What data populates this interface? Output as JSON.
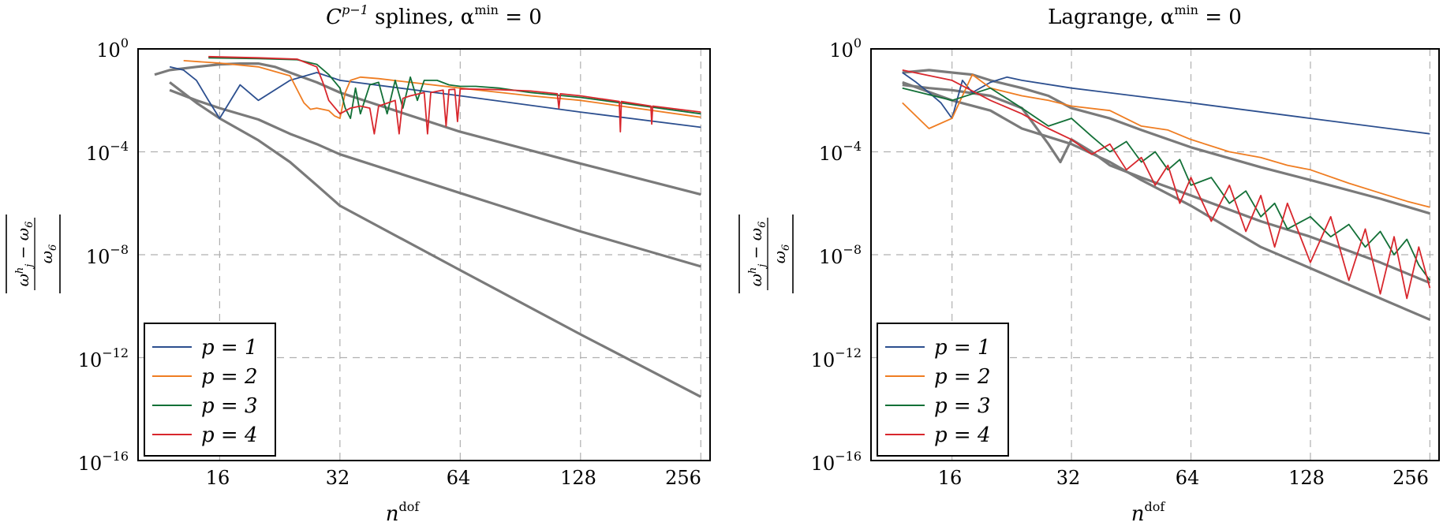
{
  "chart_data": [
    {
      "type": "line",
      "title_main": "C",
      "title_sup": "p−1",
      "title_rest": " splines, α",
      "title_sup2": "min",
      "title_end": " = 0",
      "xlabel": "n",
      "xlabel_sup": "dof",
      "ylabel": "|(ω_j^h − ω_6)/ω_6|",
      "xscale": "log2",
      "yscale": "log10",
      "xlim": [
        10,
        270
      ],
      "ylim": [
        1e-16,
        1
      ],
      "xticks": [
        16,
        32,
        64,
        128,
        256
      ],
      "xtick_labels": [
        "16",
        "32",
        "64",
        "128",
        "256"
      ],
      "yticks": [
        1,
        0.0001,
        1e-08,
        1e-12,
        1e-16
      ],
      "ytick_bases": [
        "10",
        "10",
        "10",
        "10",
        "10"
      ],
      "ytick_exps": [
        "0",
        "−4",
        "−8",
        "−12",
        "−16"
      ],
      "grid": true,
      "legend_position": "bottom-left",
      "series": [
        {
          "name": "p = 1",
          "color": "#2c4f8f",
          "x": [
            12,
            13,
            14,
            15,
            16,
            18,
            20,
            24,
            28,
            32,
            64,
            128,
            256
          ],
          "y": [
            0.2,
            0.15,
            0.06,
            0.01,
            0.002,
            0.04,
            0.01,
            0.06,
            0.12,
            0.06,
            0.015,
            0.0035,
            0.0009
          ]
        },
        {
          "name": "p = 2",
          "color": "#ef7d22",
          "x": [
            13,
            16,
            20,
            24,
            26,
            27,
            28,
            30,
            31,
            32,
            33,
            34,
            36,
            40,
            48,
            64,
            96,
            128,
            256
          ],
          "y": [
            0.35,
            0.28,
            0.2,
            0.09,
            0.008,
            0.0045,
            0.005,
            0.004,
            0.0025,
            0.002,
            0.02,
            0.06,
            0.08,
            0.07,
            0.05,
            0.03,
            0.015,
            0.01,
            0.0022
          ]
        },
        {
          "name": "p = 3",
          "color": "#137037",
          "x": [
            15,
            20,
            25,
            28,
            30,
            32,
            33,
            34,
            35,
            36,
            38,
            40,
            42,
            44,
            46,
            48,
            50,
            52,
            56,
            60,
            64,
            70,
            80,
            96,
            128,
            256
          ],
          "y": [
            0.45,
            0.42,
            0.38,
            0.25,
            0.1,
            0.03,
            0.005,
            0.002,
            0.03,
            0.003,
            0.04,
            0.05,
            0.003,
            0.06,
            0.005,
            0.08,
            0.01,
            0.06,
            0.06,
            0.04,
            0.035,
            0.035,
            0.03,
            0.02,
            0.013,
            0.003
          ]
        },
        {
          "name": "p = 4",
          "color": "#d8272d",
          "x": [
            15,
            20,
            25,
            28,
            29,
            30,
            32,
            34,
            36,
            38,
            39,
            40,
            44,
            45,
            46,
            48,
            52,
            53,
            54,
            58,
            59,
            60,
            62,
            63,
            64,
            80,
            96,
            112,
            113,
            114,
            128,
            160,
            161,
            162,
            192,
            193,
            194,
            256
          ],
          "y": [
            0.5,
            0.45,
            0.4,
            0.2,
            0.05,
            0.01,
            0.003,
            0.005,
            0.006,
            0.005,
            0.0005,
            0.006,
            0.01,
            0.0005,
            0.012,
            0.015,
            0.02,
            0.0005,
            0.02,
            0.025,
            0.001,
            0.026,
            0.027,
            0.0015,
            0.028,
            0.026,
            0.023,
            0.018,
            0.005,
            0.018,
            0.015,
            0.009,
            0.0006,
            0.009,
            0.006,
            0.0012,
            0.006,
            0.0035
          ]
        },
        {
          "name": "",
          "color": "#7a7a7a",
          "x": [
            11,
            12,
            14,
            16,
            18,
            20,
            22,
            24,
            28,
            32,
            64,
            128,
            256
          ],
          "y": [
            0.1,
            0.15,
            0.2,
            0.25,
            0.27,
            0.27,
            0.2,
            0.12,
            0.05,
            0.02,
            0.0006,
            3.5e-05,
            2.2e-06
          ]
        },
        {
          "name": "",
          "color": "#7a7a7a",
          "x": [
            12,
            14,
            16,
            20,
            24,
            28,
            32,
            64,
            128,
            256
          ],
          "y": [
            0.025,
            0.01,
            0.005,
            0.0018,
            0.0005,
            0.0002,
            8e-05,
            2.5e-06,
            8e-08,
            3.5e-09
          ]
        },
        {
          "name": "",
          "color": "#7a7a7a",
          "x": [
            12,
            14,
            16,
            20,
            24,
            28,
            32,
            64,
            128,
            256
          ],
          "y": [
            0.05,
            0.008,
            0.002,
            0.00028,
            4e-05,
            5e-06,
            8e-07,
            2.5e-09,
            8e-12,
            3e-14
          ]
        }
      ]
    },
    {
      "type": "line",
      "title_main": "Lagrange, α",
      "title_sup": "min",
      "title_end": " = 0",
      "xlabel": "n",
      "xlabel_sup": "dof",
      "ylabel": "|(ω_j^h − ω_6)/ω_6|",
      "xscale": "log2",
      "yscale": "log10",
      "xlim": [
        10,
        270
      ],
      "ylim": [
        1e-16,
        1
      ],
      "xticks": [
        16,
        32,
        64,
        128,
        256
      ],
      "xtick_labels": [
        "16",
        "32",
        "64",
        "128",
        "256"
      ],
      "yticks": [
        1,
        0.0001,
        1e-08,
        1e-12,
        1e-16
      ],
      "ytick_bases": [
        "10",
        "10",
        "10",
        "10",
        "10"
      ],
      "ytick_exps": [
        "0",
        "−4",
        "−8",
        "−12",
        "−16"
      ],
      "grid": true,
      "legend_position": "bottom-left",
      "series": [
        {
          "name": "p = 1",
          "color": "#2c4f8f",
          "x": [
            12,
            13,
            14,
            15,
            16,
            17,
            18,
            20,
            22,
            24,
            32,
            64,
            128,
            256
          ],
          "y": [
            0.12,
            0.05,
            0.02,
            0.008,
            0.002,
            0.06,
            0.02,
            0.05,
            0.08,
            0.06,
            0.03,
            0.008,
            0.002,
            0.0005
          ]
        },
        {
          "name": "p = 2",
          "color": "#ef7d22",
          "x": [
            12,
            14,
            16,
            18,
            20,
            24,
            28,
            32,
            40,
            48,
            56,
            64,
            80,
            96,
            112,
            128,
            160,
            192,
            224,
            256
          ],
          "y": [
            0.008,
            0.0008,
            0.002,
            0.1,
            0.03,
            0.015,
            0.01,
            0.006,
            0.004,
            0.001,
            0.0007,
            0.0003,
            0.0001,
            6e-05,
            3e-05,
            2e-05,
            6e-06,
            2.5e-06,
            1.2e-06,
            7e-07
          ]
        },
        {
          "name": "p = 3",
          "color": "#137037",
          "x": [
            12,
            16,
            20,
            24,
            28,
            32,
            36,
            40,
            44,
            48,
            52,
            56,
            60,
            64,
            72,
            80,
            88,
            96,
            104,
            112,
            128,
            144,
            160,
            176,
            192,
            208,
            224,
            240,
            256
          ],
          "y": [
            0.03,
            0.01,
            0.03,
            0.005,
            0.001,
            0.002,
            0.0004,
            0.0001,
            0.00025,
            4e-05,
            0.0001,
            2e-05,
            5e-05,
            5e-06,
            1e-05,
            1e-06,
            3e-06,
            3e-07,
            1e-06,
            1e-07,
            3e-07,
            5e-08,
            1.5e-07,
            2e-08,
            8e-08,
            1e-08,
            4e-08,
            4e-09,
            1e-09
          ]
        },
        {
          "name": "p = 4",
          "color": "#d8272d",
          "x": [
            12,
            16,
            20,
            24,
            28,
            32,
            36,
            40,
            44,
            48,
            52,
            56,
            60,
            64,
            72,
            80,
            88,
            96,
            104,
            112,
            128,
            144,
            160,
            176,
            192,
            208,
            224,
            240,
            256
          ],
          "y": [
            0.15,
            0.06,
            0.01,
            0.003,
            0.0008,
            0.0003,
            8e-05,
            0.0002,
            2e-05,
            6e-05,
            5e-06,
            3e-05,
            1e-06,
            1e-05,
            2e-07,
            5e-06,
            8e-08,
            2e-06,
            2e-08,
            1e-06,
            5e-09,
            3e-07,
            1e-09,
            1e-07,
            3e-10,
            5e-08,
            2e-10,
            2e-08,
            5e-10
          ]
        },
        {
          "name": "",
          "color": "#7a7a7a",
          "x": [
            12,
            14,
            16,
            18,
            20,
            24,
            28,
            32,
            40,
            48,
            64,
            96,
            128,
            192,
            256
          ],
          "y": [
            0.12,
            0.15,
            0.12,
            0.1,
            0.06,
            0.03,
            0.015,
            0.005,
            0.002,
            0.0007,
            0.00015,
            2.5e-05,
            8e-06,
            1.5e-06,
            4e-07
          ]
        },
        {
          "name": "",
          "color": "#7a7a7a",
          "x": [
            12,
            14,
            16,
            20,
            24,
            28,
            30,
            32,
            36,
            40,
            48,
            64,
            96,
            128,
            192,
            256
          ],
          "y": [
            0.04,
            0.03,
            0.025,
            0.015,
            0.005,
            0.0002,
            4e-05,
            0.0003,
            0.0001,
            3e-05,
            1e-05,
            2e-06,
            2e-07,
            5e-08,
            5e-09,
            8e-10
          ]
        },
        {
          "name": "",
          "color": "#7a7a7a",
          "x": [
            12,
            16,
            20,
            24,
            32,
            40,
            48,
            64,
            96,
            128,
            192,
            256
          ],
          "y": [
            0.05,
            0.01,
            0.004,
            0.0008,
            0.0002,
            4e-05,
            8e-06,
            8e-07,
            2e-08,
            3e-09,
            2e-10,
            3e-11
          ]
        }
      ]
    }
  ]
}
